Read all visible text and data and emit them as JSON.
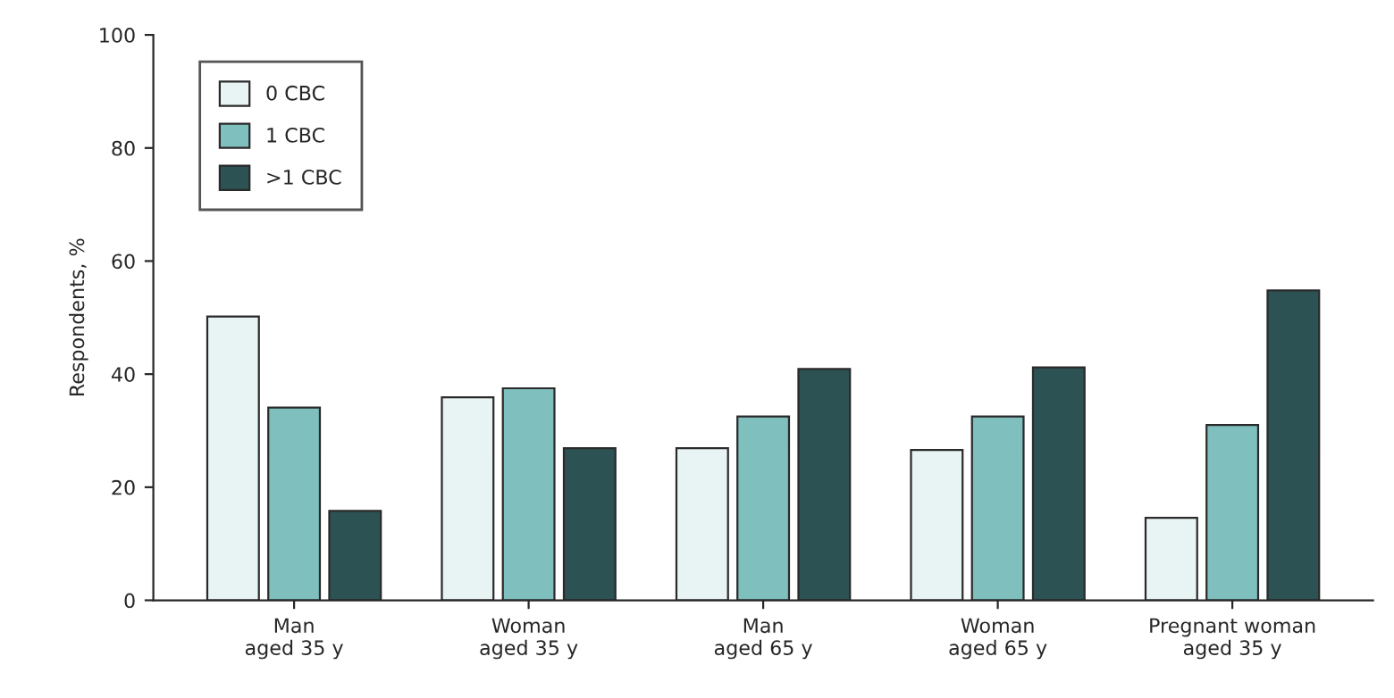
{
  "chart_data": {
    "type": "bar",
    "ylabel": "Respondents, %",
    "categories": [
      "Man\naged 35 y",
      "Woman\naged 35 y",
      "Man\naged 65 y",
      "Woman\naged 65 y",
      "Pregnant woman\naged 35 y"
    ],
    "series": [
      {
        "name": "0 CBC",
        "color": "#e8f3f3",
        "values": [
          50.2,
          35.9,
          26.9,
          26.6,
          14.6
        ]
      },
      {
        "name": "1 CBC",
        "color": "#7fbfbe",
        "values": [
          34.1,
          37.5,
          32.5,
          32.5,
          31.0
        ]
      },
      {
        "name": ">1 CBC",
        "color": "#2c5253",
        "values": [
          15.8,
          26.9,
          40.9,
          41.2,
          54.8
        ]
      }
    ],
    "ylim": [
      0,
      100
    ],
    "yticks": [
      0,
      20,
      40,
      60,
      80,
      100
    ],
    "grid": false,
    "legend": "top left"
  }
}
